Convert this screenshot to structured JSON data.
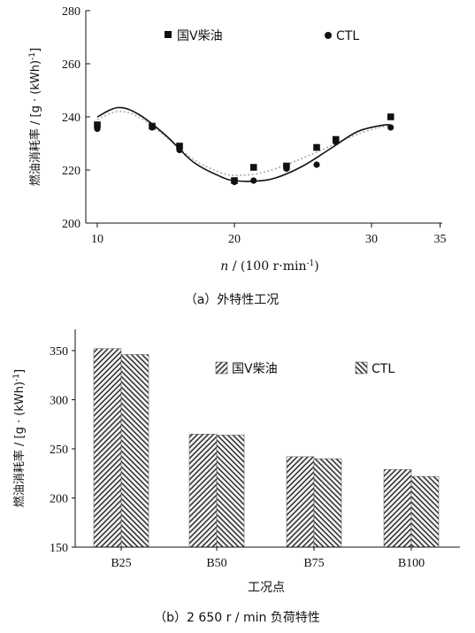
{
  "chart_data": [
    {
      "type": "scatter",
      "caption": "（a）外特性工况",
      "xlabel_italic": "n",
      "xlabel_rest": " / (100 r·min",
      "xlabel_sup": "-1",
      "xlabel_end": ")",
      "ylabel": "燃油消耗率 / [g · (kWh)",
      "ylabel_sup": "-1",
      "ylabel_end": "]",
      "xlim": [
        8,
        35
      ],
      "ylim": [
        200,
        280
      ],
      "xticks": [
        "10",
        "20",
        "30",
        "35"
      ],
      "xtick_values": [
        10,
        20,
        30,
        35
      ],
      "yticks": [
        "200",
        "220",
        "240",
        "260",
        "280"
      ],
      "ytick_values": [
        200,
        220,
        240,
        260,
        280
      ],
      "legend_position": "top",
      "series": [
        {
          "name": "国V柴油",
          "marker": "square",
          "fit_style": "solid",
          "color": "#111111",
          "x": [
            10,
            14,
            16,
            20,
            21.4,
            23.8,
            26,
            27.4,
            31.4
          ],
          "y": [
            237,
            236.5,
            229,
            216,
            221,
            221.5,
            228.5,
            231.5,
            240
          ],
          "fit_x": [
            10,
            11.5,
            13,
            15,
            17,
            19,
            20,
            21.5,
            23,
            25,
            27,
            29,
            31,
            31.5
          ],
          "fit_y": [
            240,
            243.5,
            241,
            233,
            223,
            217.5,
            216,
            215.8,
            217,
            221.5,
            228,
            234.5,
            237,
            236.5
          ]
        },
        {
          "name": "CTL",
          "marker": "circle",
          "fit_style": "dotted",
          "color": "#111111",
          "x": [
            10,
            14,
            16,
            20,
            21.4,
            23.8,
            26,
            27.4,
            31.4
          ],
          "y": [
            235.5,
            236,
            227.5,
            215.5,
            216,
            220.5,
            222,
            230.5,
            236
          ],
          "fit_x": [
            10,
            11.5,
            13,
            15,
            17,
            19,
            20,
            21.5,
            23,
            25,
            27,
            29,
            31,
            31.5
          ],
          "fit_y": [
            239,
            242,
            240,
            232.5,
            224,
            219,
            218,
            218.5,
            220.5,
            224.5,
            229,
            233.5,
            236.5,
            236.5
          ]
        }
      ]
    },
    {
      "type": "bar",
      "caption": "（b）2 650 r / min 负荷特性",
      "xlabel": "工况点",
      "ylabel": "燃油消耗率 / [g · (kWh)",
      "ylabel_sup": "-1",
      "ylabel_end": "]",
      "ylim": [
        150,
        360
      ],
      "yticks": [
        "150",
        "200",
        "250",
        "300",
        "350"
      ],
      "ytick_values": [
        150,
        200,
        250,
        300,
        350
      ],
      "categories": [
        "B25",
        "B50",
        "B75",
        "B100"
      ],
      "legend_position": "top-right",
      "series": [
        {
          "name": "国V柴油",
          "pattern": "hatch-a",
          "values": [
            352,
            265,
            242,
            229
          ]
        },
        {
          "name": "CTL",
          "pattern": "hatch-b",
          "values": [
            346,
            264,
            240,
            222
          ]
        }
      ]
    }
  ]
}
